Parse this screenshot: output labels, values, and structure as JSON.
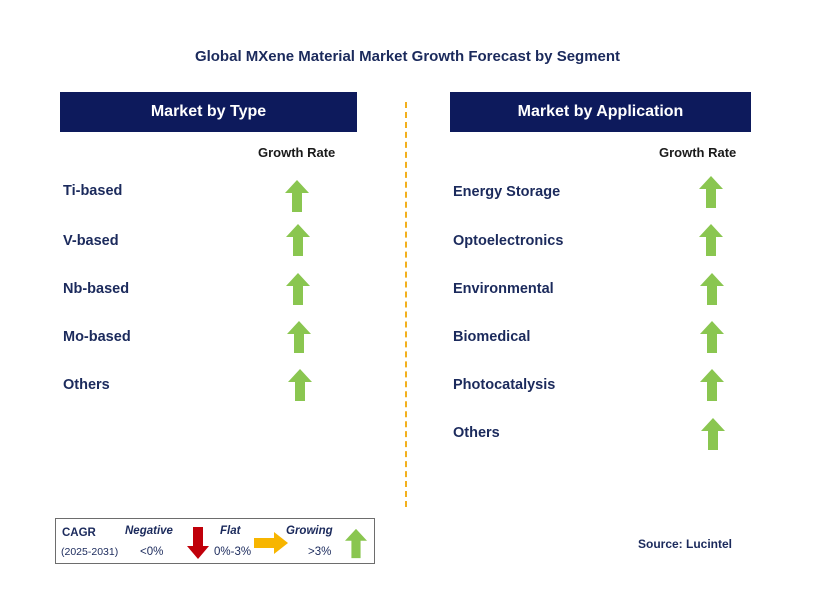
{
  "title": "Global MXene Material Market Growth Forecast by Segment",
  "colors": {
    "header_bg": "#0d1a5c",
    "text": "#1b2a5c",
    "up_arrow": "#8ac650",
    "down_arrow": "#c0000a",
    "flat_arrow": "#f7b500",
    "divider": "#f2b01e"
  },
  "left_panel": {
    "header": "Market by Type",
    "column_label": "Growth Rate",
    "items": [
      {
        "label": "Ti-based",
        "growth": "growing"
      },
      {
        "label": "V-based",
        "growth": "growing"
      },
      {
        "label": "Nb-based",
        "growth": "growing"
      },
      {
        "label": "Mo-based",
        "growth": "growing"
      },
      {
        "label": "Others",
        "growth": "growing"
      }
    ]
  },
  "right_panel": {
    "header": "Market by Application",
    "column_label": "Growth Rate",
    "items": [
      {
        "label": "Energy Storage",
        "growth": "growing"
      },
      {
        "label": "Optoelectronics",
        "growth": "growing"
      },
      {
        "label": "Environmental",
        "growth": "growing"
      },
      {
        "label": "Biomedical",
        "growth": "growing"
      },
      {
        "label": "Photocatalysis",
        "growth": "growing"
      },
      {
        "label": "Others",
        "growth": "growing"
      }
    ]
  },
  "legend": {
    "cagr_label": "CAGR",
    "period": "(2025-2031)",
    "negative_label": "Negative",
    "negative_range": "<0%",
    "flat_label": "Flat",
    "flat_range": "0%-3%",
    "growing_label": "Growing",
    "growing_range": ">3%"
  },
  "source": "Source: Lucintel"
}
